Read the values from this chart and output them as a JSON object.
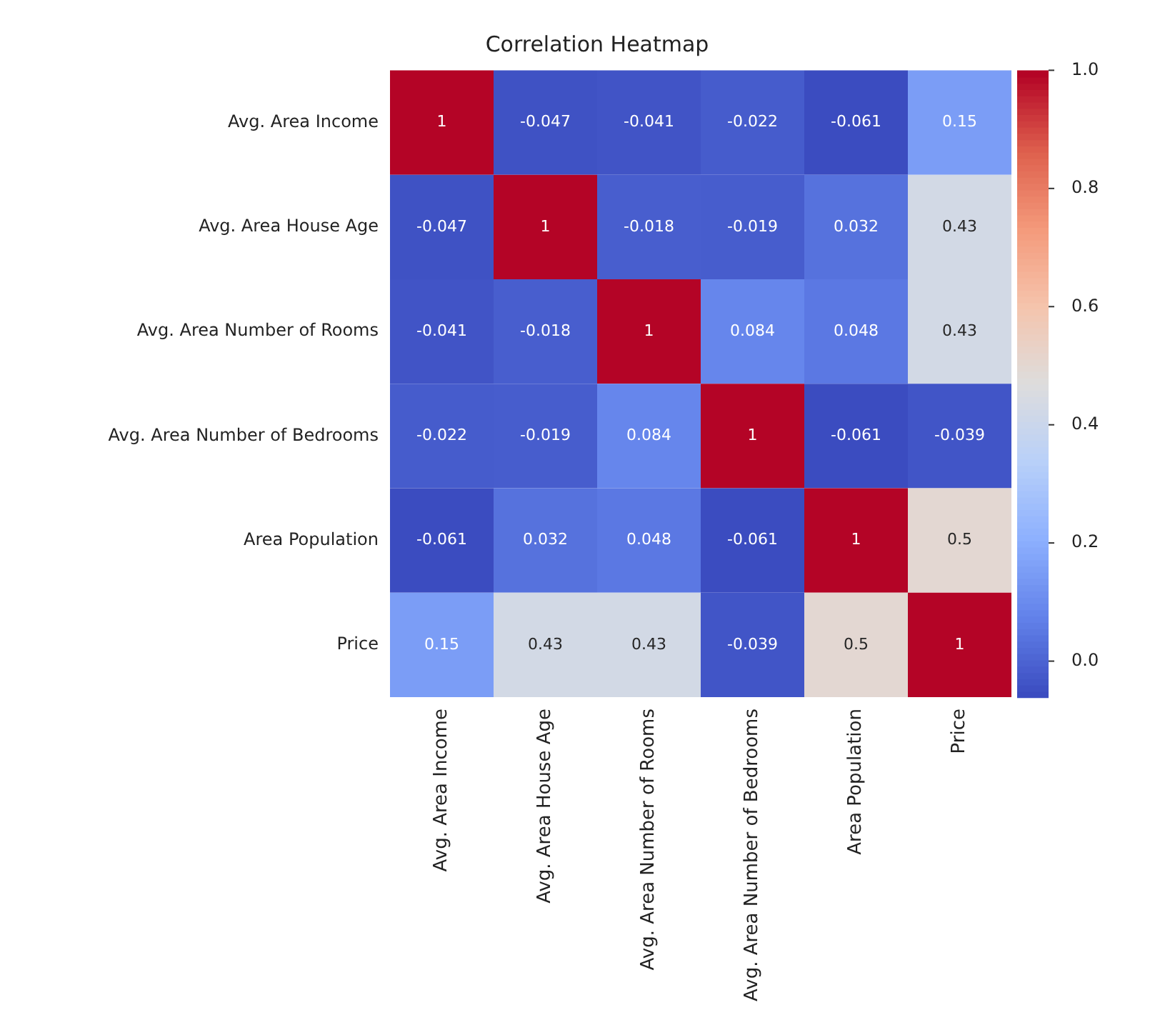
{
  "chart_data": {
    "type": "heatmap",
    "title": "Correlation Heatmap",
    "categories": [
      "Avg. Area Income",
      "Avg. Area House Age",
      "Avg. Area Number of Rooms",
      "Avg. Area Number of Bedrooms",
      "Area Population",
      "Price"
    ],
    "y_categories": [
      "Avg. Area Income",
      "Avg. Area House Age",
      "Avg. Area Number of Rooms",
      "Avg. Area Number of Bedrooms",
      "Area Population",
      "Price"
    ],
    "cells": [
      [
        1,
        -0.047,
        -0.041,
        -0.022,
        -0.061,
        0.15
      ],
      [
        -0.047,
        1,
        -0.018,
        -0.019,
        0.032,
        0.43
      ],
      [
        -0.041,
        -0.018,
        1,
        0.084,
        0.048,
        0.43
      ],
      [
        -0.022,
        -0.019,
        0.084,
        1,
        -0.061,
        -0.039
      ],
      [
        -0.061,
        0.032,
        0.048,
        -0.061,
        1,
        0.5
      ],
      [
        0.15,
        0.43,
        0.43,
        -0.039,
        0.5,
        1
      ]
    ],
    "data_labels": true,
    "clim": [
      -0.061,
      1
    ],
    "cticks": [
      {
        "value": 0,
        "label": "0.0"
      },
      {
        "value": 0.2,
        "label": "0.2"
      },
      {
        "value": 0.4,
        "label": "0.4"
      },
      {
        "value": 0.6,
        "label": "0.6"
      },
      {
        "value": 0.8,
        "label": "0.8"
      },
      {
        "value": 1,
        "label": "1.0"
      }
    ]
  }
}
